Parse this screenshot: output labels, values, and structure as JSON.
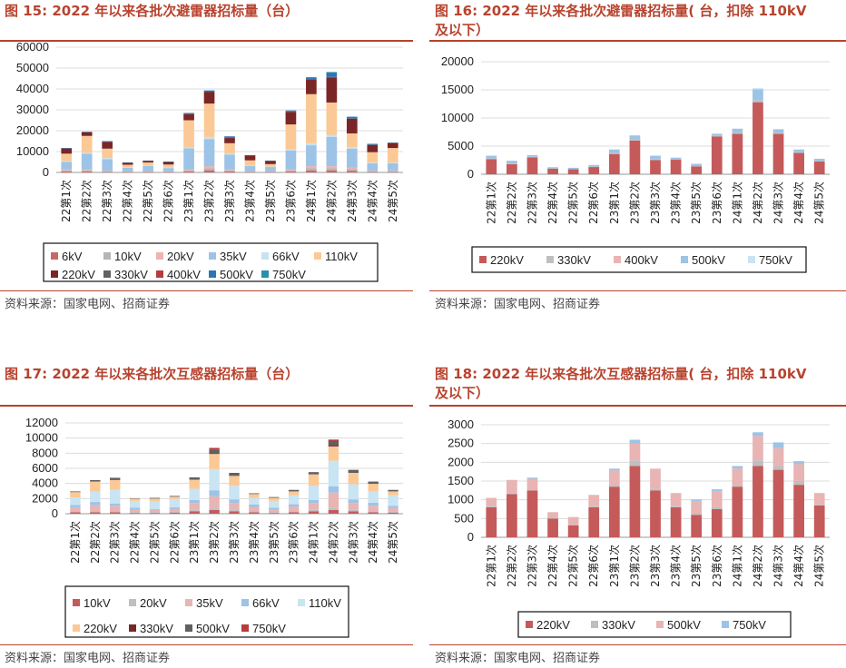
{
  "titles": {
    "fig15": "图 15:  2022 年以来各批次避雷器招标量（台）",
    "fig16_l1": "图 16: 2022 年以来各批次避雷器招标量( 台，扣除 110kV",
    "fig16_l2": "及以下）",
    "fig17": "图 17:  2022 年以来各批次互感器招标量（台）",
    "fig18_l1": "图 18: 2022 年以来各批次互感器招标量( 台，扣除 110kV",
    "fig18_l2": "及以下）"
  },
  "sources": {
    "s15": "资料来源：国家电网、招商证券",
    "s16": "资料来源：国家电网、招商证券",
    "s17": "资料来源：国家电网、招商证券",
    "s18": "资料来源：国家电网、招商证券"
  },
  "colors": {
    "6kV": "#c96767",
    "10kV": "#b5b5b5",
    "20kV": "#efb3b0",
    "35kV": "#9dc3e6",
    "66kV": "#c5e3f0",
    "110kV": "#fbc995",
    "220kV": "#7b2626",
    "330kV": "#606060",
    "400kV": "#b83c3c",
    "500kV": "#2e75b6",
    "750kV": "#2a8fa8",
    "red": "#c55a5a",
    "grey": "#bfbfbf",
    "pink": "#e8b4b4",
    "blue": "#9dc3e6",
    "lightblue": "#c9e4f2"
  },
  "chart_data": [
    {
      "id": "fig15",
      "type": "bar",
      "stacked": true,
      "categories": [
        "22第1次",
        "22第2次",
        "22第3次",
        "22第4次",
        "22第5次",
        "22第6次",
        "23第1次",
        "23第2次",
        "23第3次",
        "23第4次",
        "23第5次",
        "23第6次",
        "24第1次",
        "24第2次",
        "24第3次",
        "24第4次",
        "24第5次"
      ],
      "ylim": [
        0,
        60000
      ],
      "yticks": [
        0,
        10000,
        20000,
        30000,
        40000,
        50000,
        60000
      ],
      "series": [
        {
          "name": "6kV",
          "color": "6kV",
          "values": [
            500,
            500,
            300,
            200,
            200,
            200,
            500,
            1000,
            500,
            200,
            200,
            500,
            1000,
            1000,
            800,
            300,
            300
          ]
        },
        {
          "name": "10kV",
          "color": "10kV",
          "values": [
            500,
            500,
            300,
            200,
            200,
            200,
            500,
            1000,
            500,
            200,
            200,
            500,
            1000,
            1000,
            800,
            300,
            300
          ]
        },
        {
          "name": "20kV",
          "color": "20kV",
          "values": [
            500,
            500,
            300,
            200,
            200,
            200,
            500,
            1000,
            500,
            200,
            200,
            500,
            1000,
            1000,
            800,
            300,
            300
          ]
        },
        {
          "name": "35kV",
          "color": "35kV",
          "values": [
            3500,
            7500,
            5500,
            1700,
            2500,
            1500,
            10000,
            13000,
            7000,
            2500,
            2000,
            9000,
            10000,
            14000,
            9000,
            3500,
            3500
          ]
        },
        {
          "name": "66kV",
          "color": "66kV",
          "values": [
            500,
            500,
            500,
            200,
            200,
            200,
            500,
            1000,
            500,
            200,
            200,
            500,
            1000,
            1000,
            800,
            300,
            300
          ]
        },
        {
          "name": "110kV",
          "color": "110kV",
          "values": [
            3500,
            8000,
            4500,
            1200,
            1500,
            1500,
            13000,
            16000,
            5000,
            2500,
            1200,
            12000,
            23500,
            15500,
            6500,
            5000,
            7000
          ]
        },
        {
          "name": "220kV",
          "color": "220kV",
          "values": [
            2500,
            1800,
            3300,
            1000,
            800,
            1300,
            3000,
            5500,
            2500,
            2400,
            1500,
            6000,
            7000,
            12000,
            7000,
            3500,
            2400
          ]
        },
        {
          "name": "330kV",
          "color": "330kV",
          "values": [
            0,
            0,
            0,
            0,
            0,
            0,
            200,
            200,
            200,
            0,
            0,
            200,
            300,
            300,
            200,
            100,
            0
          ]
        },
        {
          "name": "400kV",
          "color": "400kV",
          "values": [
            0,
            0,
            0,
            0,
            0,
            0,
            0,
            0,
            0,
            0,
            0,
            0,
            0,
            0,
            0,
            0,
            0
          ]
        },
        {
          "name": "500kV",
          "color": "500kV",
          "values": [
            200,
            200,
            300,
            100,
            100,
            100,
            300,
            600,
            600,
            100,
            200,
            500,
            800,
            2000,
            800,
            400,
            200
          ]
        },
        {
          "name": "750kV",
          "color": "750kV",
          "values": [
            0,
            0,
            0,
            0,
            0,
            0,
            0,
            0,
            0,
            0,
            0,
            0,
            0,
            300,
            0,
            0,
            0
          ]
        }
      ],
      "legend": [
        "6kV",
        "10kV",
        "20kV",
        "35kV",
        "66kV",
        "110kV",
        "220kV",
        "330kV",
        "400kV",
        "500kV",
        "750kV"
      ]
    },
    {
      "id": "fig16",
      "type": "bar",
      "stacked": true,
      "categories": [
        "22第1次",
        "22第2次",
        "22第3次",
        "22第4次",
        "22第5次",
        "22第6次",
        "23第1次",
        "23第2次",
        "23第3次",
        "23第4次",
        "23第5次",
        "23第6次",
        "24第1次",
        "24第2次",
        "24第3次",
        "24第4次",
        "24第5次"
      ],
      "ylim": [
        0,
        20000
      ],
      "yticks": [
        0,
        5000,
        10000,
        15000,
        20000
      ],
      "series": [
        {
          "name": "220kV",
          "color": "red",
          "values": [
            2700,
            1800,
            3000,
            1000,
            900,
            1300,
            3600,
            6000,
            2500,
            2600,
            1400,
            6700,
            7200,
            12800,
            7200,
            3800,
            2300
          ]
        },
        {
          "name": "330kV",
          "color": "grey",
          "values": [
            100,
            100,
            100,
            50,
            50,
            50,
            200,
            200,
            200,
            50,
            50,
            100,
            200,
            300,
            200,
            100,
            50
          ]
        },
        {
          "name": "400kV",
          "color": "pink",
          "values": [
            0,
            0,
            0,
            0,
            0,
            0,
            0,
            0,
            0,
            0,
            0,
            0,
            0,
            0,
            0,
            0,
            0
          ]
        },
        {
          "name": "500kV",
          "color": "blue",
          "values": [
            500,
            500,
            300,
            200,
            200,
            300,
            600,
            700,
            600,
            300,
            400,
            400,
            700,
            2000,
            600,
            500,
            400
          ]
        },
        {
          "name": "750kV",
          "color": "lightblue",
          "values": [
            0,
            0,
            0,
            0,
            0,
            0,
            0,
            0,
            0,
            0,
            0,
            0,
            0,
            200,
            0,
            0,
            0
          ]
        }
      ],
      "legend": [
        "220kV",
        "330kV",
        "400kV",
        "500kV",
        "750kV"
      ]
    },
    {
      "id": "fig17",
      "type": "bar",
      "stacked": true,
      "categories": [
        "22第1次",
        "22第2次",
        "22第3次",
        "22第4次",
        "22第5次",
        "22第6次",
        "23第1次",
        "23第2次",
        "23第3次",
        "23第4次",
        "23第5次",
        "23第6次",
        "24第1次",
        "24第2次",
        "24第3次",
        "24第4次",
        "24第5次"
      ],
      "ylim": [
        0,
        12000
      ],
      "yticks": [
        0,
        2000,
        4000,
        6000,
        8000,
        10000,
        12000
      ],
      "series": [
        {
          "name": "10kV",
          "color": "red",
          "values": [
            200,
            200,
            200,
            100,
            100,
            150,
            300,
            500,
            300,
            200,
            100,
            200,
            300,
            500,
            300,
            200,
            150
          ]
        },
        {
          "name": "20kV",
          "color": "grey",
          "values": [
            150,
            150,
            150,
            100,
            100,
            100,
            200,
            300,
            200,
            100,
            100,
            150,
            200,
            300,
            200,
            150,
            100
          ]
        },
        {
          "name": "35kV",
          "color": "pink",
          "values": [
            500,
            800,
            700,
            400,
            300,
            400,
            900,
            1500,
            900,
            600,
            400,
            600,
            900,
            2000,
            900,
            700,
            500
          ]
        },
        {
          "name": "66kV",
          "color": "blue",
          "values": [
            300,
            400,
            300,
            200,
            100,
            200,
            400,
            800,
            500,
            300,
            200,
            300,
            400,
            800,
            500,
            400,
            300
          ]
        },
        {
          "name": "110kV",
          "color": "lightblue",
          "values": [
            1000,
            1400,
            1800,
            900,
            1000,
            1100,
            1500,
            2800,
            1800,
            900,
            900,
            1200,
            1900,
            3400,
            2000,
            1500,
            1400
          ]
        },
        {
          "name": "220kV",
          "color": "110kV",
          "values": [
            700,
            1300,
            1300,
            300,
            400,
            300,
            1200,
            2000,
            1300,
            500,
            400,
            500,
            1500,
            1900,
            1500,
            1000,
            500
          ]
        },
        {
          "name": "330kV",
          "color": "220kV",
          "values": [
            0,
            0,
            0,
            0,
            0,
            0,
            0,
            100,
            0,
            0,
            0,
            0,
            0,
            200,
            0,
            0,
            0
          ]
        },
        {
          "name": "500kV",
          "color": "330kV",
          "values": [
            100,
            200,
            300,
            50,
            100,
            100,
            300,
            500,
            400,
            100,
            100,
            200,
            300,
            500,
            400,
            300,
            200
          ]
        },
        {
          "name": "750kV",
          "color": "400kV",
          "values": [
            0,
            0,
            0,
            0,
            0,
            0,
            0,
            200,
            0,
            0,
            0,
            0,
            0,
            200,
            0,
            0,
            0
          ]
        }
      ],
      "legend": [
        "10kV",
        "20kV",
        "35kV",
        "66kV",
        "110kV",
        "220kV",
        "330kV",
        "500kV",
        "750kV"
      ]
    },
    {
      "id": "fig18",
      "type": "bar",
      "stacked": true,
      "categories": [
        "22第1次",
        "22第2次",
        "22第3次",
        "22第4次",
        "22第5次",
        "22第6次",
        "23第1次",
        "23第2次",
        "23第3次",
        "23第4次",
        "23第5次",
        "23第6次",
        "24第1次",
        "24第2次",
        "24第3次",
        "24第4次",
        "24第5次"
      ],
      "ylim": [
        0,
        3000
      ],
      "yticks": [
        0,
        500,
        1000,
        1500,
        2000,
        2500,
        3000
      ],
      "series": [
        {
          "name": "220kV",
          "color": "red",
          "values": [
            800,
            1150,
            1250,
            500,
            320,
            800,
            1350,
            1900,
            1250,
            800,
            600,
            750,
            1350,
            1900,
            1800,
            1400,
            850
          ]
        },
        {
          "name": "330kV",
          "color": "grey",
          "values": [
            30,
            30,
            30,
            20,
            20,
            30,
            50,
            150,
            50,
            30,
            30,
            50,
            50,
            150,
            100,
            100,
            30
          ]
        },
        {
          "name": "500kV",
          "color": "pink",
          "values": [
            220,
            350,
            280,
            150,
            200,
            300,
            380,
            450,
            530,
            350,
            330,
            430,
            430,
            650,
            480,
            450,
            300
          ]
        },
        {
          "name": "750kV",
          "color": "blue",
          "values": [
            0,
            0,
            30,
            0,
            0,
            0,
            50,
            100,
            0,
            0,
            50,
            50,
            70,
            100,
            150,
            80,
            0
          ]
        }
      ],
      "legend": [
        "220kV",
        "330kV",
        "500kV",
        "750kV"
      ]
    }
  ]
}
